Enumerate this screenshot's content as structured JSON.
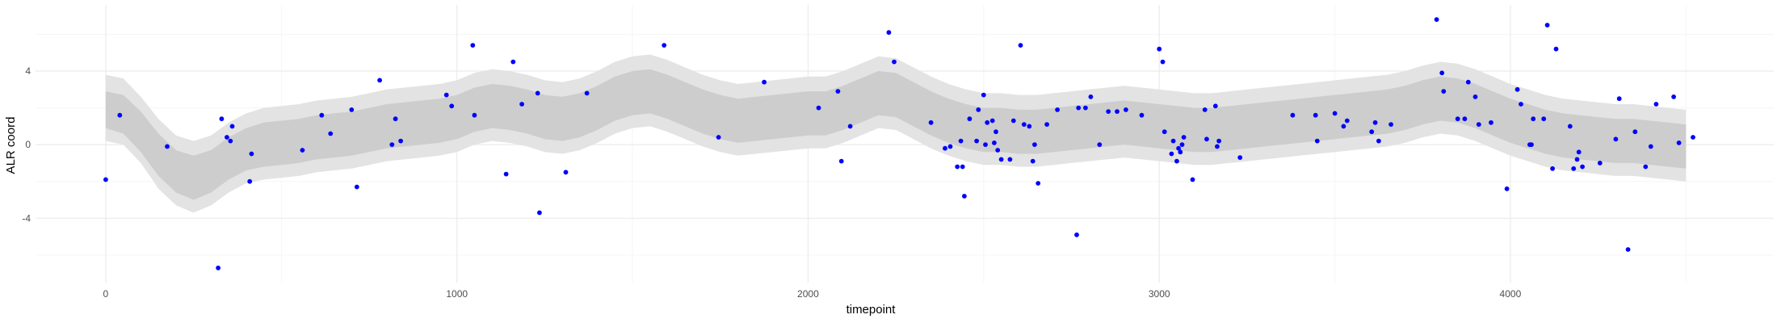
{
  "chart_data": {
    "type": "scatter",
    "title": "",
    "xlabel": "timepoint",
    "ylabel": "ALR coord",
    "xlim": [
      -200,
      4750
    ],
    "ylim": [
      -7.5,
      7.6
    ],
    "x_ticks": [
      0,
      1000,
      2000,
      3000,
      4000
    ],
    "x_tick_labels": [
      "0",
      "1000",
      "2000",
      "3000",
      "4000"
    ],
    "y_ticks": [
      -4,
      0,
      4
    ],
    "y_tick_labels": [
      "-4",
      "0",
      "4"
    ],
    "grid": true,
    "legend": "none",
    "colors": {
      "outer_band": "#e3e3e3",
      "inner_band": "#cdcdcd",
      "points": "#0000ff",
      "grid_major": "#ebebeb",
      "grid_minor": "#f5f5f5"
    },
    "bands": [
      {
        "name": "",
        "x": [
          0,
          50,
          100,
          150,
          200,
          250,
          300,
          350,
          400,
          450,
          500,
          550,
          600,
          650,
          700,
          750,
          800,
          850,
          900,
          950,
          1000,
          1050,
          1100,
          1150,
          1200,
          1250,
          1300,
          1350,
          1400,
          1450,
          1500,
          1550,
          1600,
          1650,
          1700,
          1750,
          1800,
          1850,
          1900,
          1950,
          2000,
          2050,
          2100,
          2150,
          2200,
          2250,
          2300,
          2350,
          2400,
          2450,
          2500,
          2550,
          2600,
          2650,
          2700,
          2750,
          2800,
          2850,
          2900,
          2950,
          3000,
          3050,
          3100,
          3150,
          3200,
          3250,
          3300,
          3350,
          3400,
          3450,
          3500,
          3550,
          3600,
          3650,
          3700,
          3750,
          3800,
          3850,
          3900,
          3950,
          4000,
          4050,
          4100,
          4150,
          4200,
          4250,
          4300,
          4350,
          4400,
          4450,
          4500
        ],
        "outer_lower": [
          0.2,
          0.0,
          -1.0,
          -2.4,
          -3.3,
          -3.7,
          -3.3,
          -2.6,
          -2.1,
          -1.9,
          -1.8,
          -1.7,
          -1.5,
          -1.4,
          -1.3,
          -1.1,
          -0.9,
          -0.8,
          -0.7,
          -0.6,
          -0.4,
          0.0,
          0.2,
          0.1,
          -0.1,
          -0.4,
          -0.5,
          -0.3,
          0.1,
          0.6,
          0.9,
          1.0,
          0.7,
          0.3,
          -0.1,
          -0.4,
          -0.6,
          -0.5,
          -0.4,
          -0.3,
          -0.2,
          -0.2,
          0.1,
          0.5,
          0.9,
          0.8,
          0.3,
          -0.2,
          -0.6,
          -0.9,
          -1.1,
          -1.1,
          -1.2,
          -1.2,
          -1.1,
          -1.0,
          -0.9,
          -0.8,
          -0.7,
          -0.8,
          -0.9,
          -1.0,
          -1.1,
          -1.1,
          -1.0,
          -0.9,
          -0.8,
          -0.7,
          -0.6,
          -0.5,
          -0.4,
          -0.3,
          -0.2,
          -0.1,
          0.1,
          0.4,
          0.6,
          0.5,
          0.2,
          -0.2,
          -0.6,
          -0.9,
          -1.2,
          -1.4,
          -1.5,
          -1.6,
          -1.7,
          -1.7,
          -1.8,
          -1.9,
          -2.0
        ],
        "inner_lower": [
          0.9,
          0.6,
          -0.4,
          -1.7,
          -2.6,
          -3.0,
          -2.6,
          -1.9,
          -1.4,
          -1.2,
          -1.1,
          -1.0,
          -0.8,
          -0.7,
          -0.6,
          -0.4,
          -0.2,
          -0.1,
          0.0,
          0.1,
          0.3,
          0.7,
          0.9,
          0.8,
          0.6,
          0.3,
          0.2,
          0.4,
          0.8,
          1.3,
          1.6,
          1.7,
          1.4,
          1.0,
          0.6,
          0.3,
          0.1,
          0.2,
          0.3,
          0.4,
          0.5,
          0.5,
          0.8,
          1.2,
          1.6,
          1.5,
          1.0,
          0.5,
          0.1,
          -0.2,
          -0.4,
          -0.4,
          -0.5,
          -0.5,
          -0.4,
          -0.3,
          -0.2,
          -0.1,
          0.0,
          -0.1,
          -0.2,
          -0.3,
          -0.4,
          -0.4,
          -0.3,
          -0.2,
          -0.1,
          0.0,
          0.1,
          0.2,
          0.3,
          0.4,
          0.5,
          0.6,
          0.8,
          1.1,
          1.3,
          1.2,
          0.9,
          0.5,
          0.1,
          -0.2,
          -0.5,
          -0.7,
          -0.8,
          -0.9,
          -1.0,
          -1.0,
          -1.1,
          -1.2,
          -1.3
        ],
        "inner_upper": [
          2.9,
          2.7,
          1.8,
          0.6,
          -0.3,
          -0.6,
          -0.3,
          0.4,
          0.9,
          1.2,
          1.3,
          1.4,
          1.6,
          1.7,
          1.8,
          2.0,
          2.2,
          2.3,
          2.4,
          2.5,
          2.7,
          3.1,
          3.3,
          3.2,
          3.0,
          2.7,
          2.6,
          2.8,
          3.2,
          3.7,
          4.0,
          4.1,
          3.8,
          3.4,
          3.0,
          2.7,
          2.5,
          2.6,
          2.7,
          2.8,
          2.9,
          2.9,
          3.2,
          3.6,
          4.0,
          3.9,
          3.4,
          2.9,
          2.5,
          2.2,
          2.0,
          2.0,
          1.9,
          1.9,
          2.0,
          2.1,
          2.2,
          2.3,
          2.4,
          2.3,
          2.2,
          2.1,
          2.0,
          2.0,
          2.1,
          2.2,
          2.3,
          2.4,
          2.5,
          2.6,
          2.7,
          2.8,
          2.9,
          3.0,
          3.2,
          3.5,
          3.7,
          3.6,
          3.3,
          2.9,
          2.5,
          2.2,
          1.9,
          1.7,
          1.6,
          1.5,
          1.4,
          1.4,
          1.3,
          1.2,
          1.1
        ],
        "outer_upper": [
          3.8,
          3.6,
          2.6,
          1.4,
          0.5,
          0.2,
          0.5,
          1.2,
          1.7,
          2.0,
          2.1,
          2.2,
          2.4,
          2.5,
          2.6,
          2.8,
          3.0,
          3.1,
          3.2,
          3.3,
          3.5,
          3.9,
          4.1,
          4.0,
          3.8,
          3.5,
          3.4,
          3.6,
          4.0,
          4.5,
          4.8,
          4.9,
          4.6,
          4.2,
          3.8,
          3.5,
          3.3,
          3.4,
          3.5,
          3.6,
          3.7,
          3.7,
          4.0,
          4.4,
          4.8,
          4.7,
          4.2,
          3.7,
          3.3,
          3.0,
          2.8,
          2.8,
          2.7,
          2.7,
          2.8,
          2.9,
          3.0,
          3.1,
          3.2,
          3.1,
          3.0,
          2.9,
          2.8,
          2.8,
          2.9,
          3.0,
          3.1,
          3.2,
          3.3,
          3.4,
          3.5,
          3.6,
          3.7,
          3.8,
          4.0,
          4.3,
          4.5,
          4.4,
          4.1,
          3.7,
          3.3,
          3.0,
          2.7,
          2.5,
          2.4,
          2.3,
          2.2,
          2.2,
          2.1,
          2.0,
          1.9
        ]
      }
    ],
    "series": [
      {
        "name": "",
        "points": [
          [
            0,
            -1.9
          ],
          [
            40,
            1.6
          ],
          [
            175,
            -0.1
          ],
          [
            320,
            -6.7
          ],
          [
            330,
            1.4
          ],
          [
            345,
            0.4
          ],
          [
            355,
            0.2
          ],
          [
            360,
            1.0
          ],
          [
            410,
            -2.0
          ],
          [
            415,
            -0.5
          ],
          [
            560,
            -0.3
          ],
          [
            615,
            1.6
          ],
          [
            640,
            0.6
          ],
          [
            700,
            1.9
          ],
          [
            715,
            -2.3
          ],
          [
            780,
            3.5
          ],
          [
            815,
            0.0
          ],
          [
            825,
            1.4
          ],
          [
            840,
            0.2
          ],
          [
            970,
            2.7
          ],
          [
            985,
            2.1
          ],
          [
            1045,
            5.4
          ],
          [
            1050,
            1.6
          ],
          [
            1140,
            -1.6
          ],
          [
            1160,
            4.5
          ],
          [
            1185,
            2.2
          ],
          [
            1230,
            2.8
          ],
          [
            1235,
            -3.7
          ],
          [
            1310,
            -1.5
          ],
          [
            1370,
            2.8
          ],
          [
            1590,
            5.4
          ],
          [
            1745,
            0.4
          ],
          [
            1875,
            3.4
          ],
          [
            2030,
            2.0
          ],
          [
            2085,
            2.9
          ],
          [
            2095,
            -0.9
          ],
          [
            2120,
            1.0
          ],
          [
            2230,
            6.1
          ],
          [
            2245,
            4.5
          ],
          [
            2350,
            1.2
          ],
          [
            2390,
            -0.2
          ],
          [
            2405,
            -0.1
          ],
          [
            2425,
            -1.2
          ],
          [
            2435,
            0.2
          ],
          [
            2440,
            -1.2
          ],
          [
            2445,
            -2.8
          ],
          [
            2460,
            1.4
          ],
          [
            2480,
            0.2
          ],
          [
            2485,
            1.9
          ],
          [
            2500,
            2.7
          ],
          [
            2505,
            0.0
          ],
          [
            2510,
            1.2
          ],
          [
            2525,
            1.3
          ],
          [
            2530,
            0.1
          ],
          [
            2535,
            0.7
          ],
          [
            2540,
            -0.3
          ],
          [
            2550,
            -0.8
          ],
          [
            2575,
            -0.8
          ],
          [
            2585,
            1.3
          ],
          [
            2605,
            5.4
          ],
          [
            2615,
            1.1
          ],
          [
            2630,
            1.0
          ],
          [
            2640,
            -0.9
          ],
          [
            2645,
            0.0
          ],
          [
            2655,
            -2.1
          ],
          [
            2680,
            1.1
          ],
          [
            2710,
            1.9
          ],
          [
            2765,
            -4.9
          ],
          [
            2770,
            2.0
          ],
          [
            2790,
            2.0
          ],
          [
            2805,
            2.6
          ],
          [
            2830,
            0.0
          ],
          [
            2855,
            1.8
          ],
          [
            2880,
            1.8
          ],
          [
            2905,
            1.9
          ],
          [
            2950,
            1.6
          ],
          [
            3000,
            5.2
          ],
          [
            3010,
            4.5
          ],
          [
            3015,
            0.7
          ],
          [
            3035,
            -0.5
          ],
          [
            3040,
            0.2
          ],
          [
            3050,
            -0.9
          ],
          [
            3055,
            -0.2
          ],
          [
            3060,
            -0.4
          ],
          [
            3065,
            0.0
          ],
          [
            3070,
            0.4
          ],
          [
            3095,
            -1.9
          ],
          [
            3130,
            1.9
          ],
          [
            3135,
            0.3
          ],
          [
            3160,
            2.1
          ],
          [
            3165,
            -0.1
          ],
          [
            3170,
            0.2
          ],
          [
            3230,
            -0.7
          ],
          [
            3380,
            1.6
          ],
          [
            3445,
            1.6
          ],
          [
            3450,
            0.2
          ],
          [
            3500,
            1.7
          ],
          [
            3525,
            1.0
          ],
          [
            3535,
            1.3
          ],
          [
            3605,
            0.7
          ],
          [
            3615,
            1.2
          ],
          [
            3625,
            0.2
          ],
          [
            3660,
            1.1
          ],
          [
            3790,
            6.8
          ],
          [
            3805,
            3.9
          ],
          [
            3810,
            2.9
          ],
          [
            3850,
            1.4
          ],
          [
            3870,
            1.4
          ],
          [
            3880,
            3.4
          ],
          [
            3900,
            2.6
          ],
          [
            3910,
            1.1
          ],
          [
            3945,
            1.2
          ],
          [
            3990,
            -2.4
          ],
          [
            4020,
            3.0
          ],
          [
            4030,
            2.2
          ],
          [
            4055,
            0.0
          ],
          [
            4060,
            0.0
          ],
          [
            4065,
            1.4
          ],
          [
            4095,
            1.4
          ],
          [
            4105,
            6.5
          ],
          [
            4120,
            -1.3
          ],
          [
            4130,
            5.2
          ],
          [
            4170,
            1.0
          ],
          [
            4180,
            -1.3
          ],
          [
            4190,
            -0.8
          ],
          [
            4195,
            -0.4
          ],
          [
            4205,
            -1.2
          ],
          [
            4255,
            -1.0
          ],
          [
            4300,
            0.3
          ],
          [
            4310,
            2.5
          ],
          [
            4335,
            -5.7
          ],
          [
            4355,
            0.7
          ],
          [
            4385,
            -1.2
          ],
          [
            4400,
            -0.1
          ],
          [
            4415,
            2.2
          ],
          [
            4465,
            2.6
          ],
          [
            4480,
            0.1
          ],
          [
            4520,
            0.4
          ]
        ]
      }
    ]
  }
}
